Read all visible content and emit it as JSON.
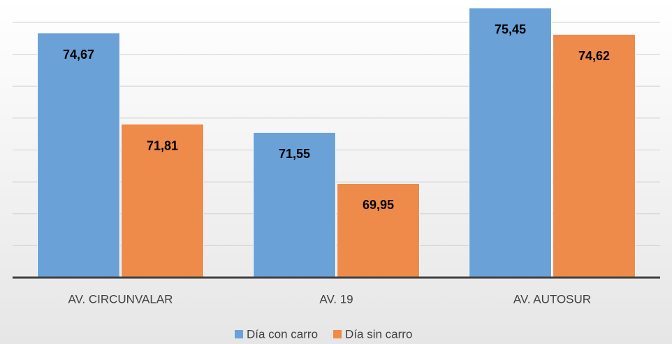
{
  "chart_data": {
    "type": "bar",
    "categories": [
      "AV. CIRCUNVALAR",
      "AV. 19",
      "AV. AUTOSUR"
    ],
    "series": [
      {
        "name": "Día con carro",
        "color": "#6aa2d8",
        "values": [
          74.67,
          71.55,
          75.45
        ],
        "value_labels": [
          "74,67",
          "71,55",
          "75,45"
        ]
      },
      {
        "name": "Día sin carro",
        "color": "#ee8a4a",
        "values": [
          71.81,
          69.95,
          74.62
        ],
        "value_labels": [
          "71,81",
          "69,95",
          "74,62"
        ]
      }
    ],
    "ylim": [
      67,
      75.7
    ],
    "yticks": [
      67,
      68,
      69,
      70,
      71,
      72,
      73,
      74,
      75
    ],
    "grid": true,
    "legend": "bottom"
  }
}
